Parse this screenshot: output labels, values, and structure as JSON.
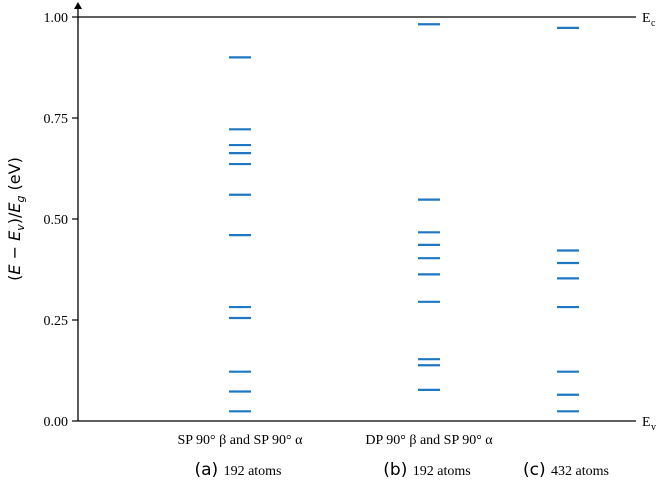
{
  "chart_data": {
    "type": "scatter",
    "ylabel": "(E − E_v)/E_g (eV)",
    "ylim": [
      0,
      1
    ],
    "yticks": [
      "0.00",
      "0.25",
      "0.50",
      "0.75",
      "1.00"
    ],
    "band_edges": {
      "top": "E",
      "top_sub": "c",
      "bottom": "E",
      "bottom_sub": "v"
    },
    "groups": [
      {
        "category": "SP 90° β and SP 90° α",
        "panel": "(a)",
        "atoms": "192 atoms",
        "levels": [
          0.9,
          0.722,
          0.683,
          0.663,
          0.636,
          0.56,
          0.46,
          0.282,
          0.255,
          0.122,
          0.073,
          0.024
        ]
      },
      {
        "category": "DP 90° β and SP 90° α",
        "panel": "(b)",
        "atoms": "192 atoms",
        "levels": [
          0.982,
          0.548,
          0.467,
          0.436,
          0.403,
          0.363,
          0.295,
          0.153,
          0.138,
          0.077
        ]
      },
      {
        "category": "",
        "panel": "(c)",
        "atoms": "432 atoms",
        "levels": [
          0.973,
          0.422,
          0.391,
          0.353,
          0.282,
          0.122,
          0.065,
          0.024
        ]
      }
    ],
    "series_color": "#1f77c4",
    "grid": false
  }
}
